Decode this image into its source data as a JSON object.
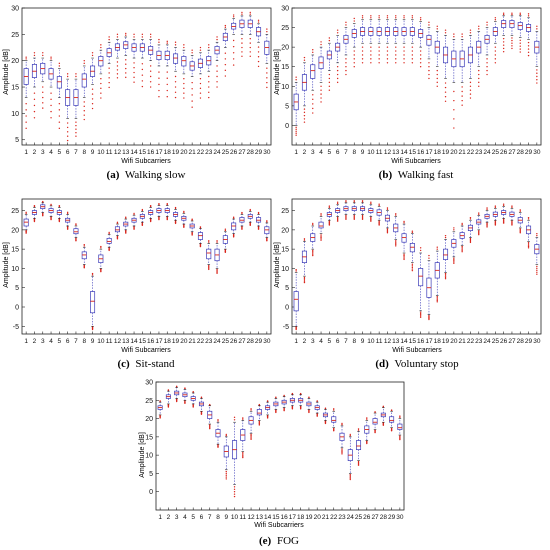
{
  "chart_data": [
    {
      "type": "box",
      "caption_letter": "(a)",
      "caption_text": "Walking slow",
      "xlabel": "Wifi Subcarriers",
      "ylabel": "Amplitude [dB]",
      "ylim": [
        4,
        30
      ],
      "yticks": [
        5,
        10,
        15,
        20,
        25,
        30
      ],
      "categories": [
        "1",
        "2",
        "3",
        "4",
        "5",
        "6",
        "7",
        "8",
        "9",
        "10",
        "11",
        "12",
        "13",
        "14",
        "15",
        "16",
        "17",
        "18",
        "19",
        "20",
        "21",
        "22",
        "23",
        "24",
        "25",
        "26",
        "27",
        "28",
        "29",
        "30"
      ],
      "medians": [
        17,
        18,
        18.5,
        17.5,
        16,
        13,
        13,
        16.5,
        18,
        20,
        21.5,
        22.5,
        23,
        22.5,
        22.5,
        22,
        21,
        21,
        20.5,
        20,
        19,
        19.5,
        20,
        22,
        24.5,
        26.5,
        27,
        27,
        25.5,
        22.5
      ],
      "q1": [
        15.5,
        16.8,
        17.5,
        16.5,
        14.8,
        11.5,
        11.5,
        15,
        17,
        19,
        20.8,
        22,
        22.3,
        21.8,
        21.8,
        21.2,
        20.2,
        20.2,
        19.5,
        19,
        18.2,
        18.7,
        19.2,
        21.3,
        23.8,
        26,
        26.3,
        26.3,
        24.7,
        21.2
      ],
      "q3": [
        18.5,
        19.3,
        19.5,
        18.5,
        17,
        14.5,
        14.5,
        17.5,
        19,
        20.8,
        22.3,
        23.2,
        23.6,
        23.2,
        23.2,
        22.7,
        21.8,
        21.8,
        21.3,
        20.8,
        19.8,
        20.3,
        20.8,
        22.7,
        25.2,
        27.1,
        27.7,
        27.7,
        26.3,
        23.7
      ],
      "whisker_low": [
        13,
        15,
        16,
        15,
        13,
        9,
        9,
        13,
        15.5,
        17.5,
        19.5,
        20.5,
        21,
        20.5,
        20.5,
        20,
        19,
        19,
        18,
        17.5,
        17,
        17.5,
        18,
        20,
        22.5,
        25,
        25,
        25,
        23.5,
        19.5
      ],
      "whisker_high": [
        20,
        20.5,
        20.5,
        20,
        18.5,
        16.5,
        16.5,
        19,
        20.5,
        22,
        23.5,
        24,
        24.5,
        24,
        24,
        24,
        23,
        23,
        22.5,
        22,
        21,
        21.5,
        22,
        23.5,
        26,
        28,
        28.5,
        28.5,
        27,
        25
      ],
      "outliers_low": [
        6,
        8,
        10,
        8,
        6,
        4,
        5,
        8,
        10,
        12,
        14,
        16,
        16,
        15,
        14,
        14,
        12,
        12,
        12,
        12,
        10,
        12,
        12,
        14,
        16,
        18,
        20,
        20,
        18,
        14
      ],
      "outliers_high": [
        21,
        22,
        22,
        21,
        20,
        18,
        18,
        20.5,
        22,
        23.5,
        25,
        25.5,
        25.5,
        25.5,
        25.5,
        25.5,
        24.5,
        24,
        24,
        23.5,
        22.5,
        23,
        23.5,
        25,
        27,
        29,
        29.5,
        29.5,
        28,
        26.5
      ]
    },
    {
      "type": "box",
      "caption_letter": "(b)",
      "caption_text": "Walking fast",
      "xlabel": "Wifi Subcarriers",
      "ylabel": "Amplitude [dB]",
      "ylim": [
        -5,
        30
      ],
      "yticks": [
        0,
        5,
        10,
        15,
        20,
        25,
        30
      ],
      "categories": [
        "1",
        "2",
        "3",
        "4",
        "5",
        "6",
        "7",
        "8",
        "9",
        "10",
        "11",
        "12",
        "13",
        "14",
        "15",
        "16",
        "17",
        "18",
        "19",
        "20",
        "21",
        "22",
        "23",
        "24",
        "25",
        "26",
        "27",
        "28",
        "29",
        "30"
      ],
      "medians": [
        6,
        11,
        14,
        16,
        18,
        20,
        22,
        23.5,
        24,
        24,
        24,
        24,
        24,
        24,
        24,
        23.5,
        22,
        20,
        18,
        17,
        17,
        18,
        20,
        22,
        24,
        26,
        26,
        25.5,
        25,
        20
      ],
      "q1": [
        4,
        9,
        12,
        14.5,
        17,
        19,
        21,
        22.5,
        23,
        23,
        23,
        23,
        23,
        23,
        23,
        22.5,
        20.5,
        18.5,
        16,
        15,
        15,
        16,
        18.5,
        21,
        23,
        25,
        25,
        24.5,
        24,
        18.5
      ],
      "q3": [
        8,
        13,
        15.5,
        17.5,
        19,
        21,
        23,
        24.5,
        25,
        25,
        25,
        25,
        25,
        25,
        25,
        24.5,
        23,
        21.5,
        20,
        19,
        19,
        20,
        21.5,
        23,
        25,
        26.8,
        26.8,
        26.3,
        25.8,
        21.5
      ],
      "whisker_low": [
        0,
        5,
        9,
        11,
        14,
        16,
        18,
        20,
        21,
        21,
        21,
        21,
        21,
        21,
        21,
        20,
        17,
        15,
        12,
        11,
        11,
        12,
        15,
        18,
        21,
        23,
        23,
        22.5,
        22,
        15
      ],
      "whisker_high": [
        11,
        16,
        18,
        20,
        21,
        23,
        25,
        26,
        27,
        27,
        27,
        27,
        27,
        27,
        27,
        26.5,
        25,
        24,
        23,
        22,
        22,
        23,
        24,
        25,
        26.5,
        28,
        28,
        28,
        27.5,
        24
      ],
      "outliers_low": [
        -3,
        0,
        2,
        5,
        8,
        10,
        12,
        14,
        15,
        15,
        15,
        15,
        15,
        15,
        15,
        14,
        11,
        9,
        5,
        -3,
        4,
        6,
        9,
        12,
        15,
        18,
        19,
        18,
        17,
        10
      ],
      "outliers_high": [
        13,
        18,
        20,
        22,
        23,
        25,
        27,
        28,
        28.5,
        28.5,
        28.5,
        28.5,
        28.5,
        28.5,
        28.5,
        28,
        27,
        26,
        25,
        24,
        24,
        25,
        26,
        27,
        28,
        29,
        29,
        29,
        29,
        26
      ]
    },
    {
      "type": "box",
      "caption_letter": "(c)",
      "caption_text": "Sit-stand",
      "xlabel": "Wifi Subcarriers",
      "ylabel": "Amplitude [dB]",
      "ylim": [
        -7,
        28
      ],
      "yticks": [
        -5,
        0,
        5,
        10,
        15,
        20,
        25
      ],
      "categories": [
        "1",
        "2",
        "3",
        "4",
        "5",
        "6",
        "7",
        "8",
        "9",
        "10",
        "11",
        "12",
        "13",
        "14",
        "15",
        "16",
        "17",
        "18",
        "19",
        "20",
        "21",
        "22",
        "23",
        "24",
        "25",
        "26",
        "27",
        "28",
        "29",
        "30"
      ],
      "medians": [
        22,
        24.5,
        26,
        25,
        24.5,
        22.5,
        19.5,
        13.5,
        1.5,
        12.5,
        17,
        20,
        21.5,
        22.5,
        23.5,
        24.5,
        25,
        25,
        24,
        23,
        21,
        18.5,
        14,
        13.5,
        17.5,
        21,
        22.5,
        23.5,
        22.5,
        20
      ],
      "q1": [
        21,
        24,
        25.5,
        24.5,
        24,
        22,
        19,
        12.5,
        -1.5,
        11.5,
        16.5,
        19.5,
        21,
        22,
        23,
        24,
        24.5,
        24.5,
        23.5,
        22.5,
        20.5,
        17.5,
        12.5,
        12,
        16.5,
        20,
        22,
        23,
        22,
        19
      ],
      "q3": [
        22.8,
        25,
        26.5,
        25.5,
        25,
        23,
        20.3,
        14.3,
        4,
        13.5,
        17.8,
        20.8,
        22,
        23,
        24,
        25,
        25.5,
        25.5,
        24.5,
        23.5,
        21.5,
        19.3,
        15,
        15,
        18.5,
        21.8,
        23.2,
        24,
        23.2,
        20.8
      ],
      "whisker_low": [
        20,
        23,
        24.5,
        23.5,
        23,
        21,
        18,
        11,
        -5,
        10,
        15.5,
        18.5,
        20,
        21,
        22,
        23,
        23.5,
        23.5,
        22.5,
        21.5,
        19.5,
        16.5,
        11,
        10,
        15,
        19,
        21,
        22,
        21,
        18
      ],
      "whisker_high": [
        24,
        25.8,
        27,
        26.2,
        25.8,
        24,
        21,
        15.5,
        8,
        15,
        18.8,
        21.5,
        22.8,
        23.8,
        24.8,
        25.8,
        26.3,
        26.3,
        25.3,
        24.3,
        22.3,
        20.3,
        16.5,
        16.5,
        19.5,
        22.8,
        24,
        24.8,
        24,
        21.8
      ],
      "outliers_low": [
        19,
        22,
        23.5,
        22.5,
        22,
        20,
        17,
        10,
        -6,
        9,
        14.5,
        17.5,
        19,
        20,
        21,
        22,
        22.5,
        22.5,
        21.5,
        20.5,
        18.5,
        15.5,
        9.5,
        8.5,
        14,
        18,
        20,
        21,
        20,
        17
      ],
      "outliers_high": [
        24.8,
        26.5,
        27.5,
        26.8,
        26.5,
        24.8,
        21.8,
        16.5,
        9,
        16,
        19.6,
        22.2,
        23.5,
        24.5,
        25.5,
        26.5,
        27,
        27,
        26,
        25,
        23,
        21,
        17.5,
        17.5,
        20.5,
        23.5,
        24.7,
        25.5,
        24.7,
        22.6
      ]
    },
    {
      "type": "box",
      "caption_letter": "(d)",
      "caption_text": "Voluntary stop",
      "xlabel": "Wifi Subcarriers",
      "ylabel": "Amplitude [dB]",
      "ylim": [
        -7,
        28
      ],
      "yticks": [
        -5,
        0,
        5,
        10,
        15,
        20,
        25
      ],
      "categories": [
        "1",
        "2",
        "3",
        "4",
        "5",
        "6",
        "7",
        "8",
        "9",
        "10",
        "11",
        "12",
        "13",
        "14",
        "15",
        "16",
        "17",
        "18",
        "19",
        "20",
        "21",
        "22",
        "23",
        "24",
        "25",
        "26",
        "27",
        "28",
        "29",
        "30"
      ],
      "medians": [
        2,
        13,
        18,
        21,
        24,
        25,
        25.5,
        25.5,
        25.5,
        25,
        24.5,
        23,
        20.5,
        18,
        15.5,
        8,
        5,
        9.5,
        13.5,
        16.5,
        18.5,
        20.5,
        22,
        23.5,
        24,
        24.5,
        24,
        22.5,
        20,
        15
      ],
      "q1": [
        -1,
        11.5,
        17,
        20.5,
        23.5,
        24.5,
        25,
        25,
        25,
        24.5,
        23.8,
        22.3,
        19.5,
        16.8,
        14.3,
        5.5,
        2.5,
        7.5,
        12.3,
        15.5,
        17.8,
        19.8,
        21.5,
        23,
        23.5,
        24,
        23.5,
        21.8,
        19,
        13.8
      ],
      "q3": [
        4,
        14.5,
        19,
        22,
        24.5,
        25.5,
        26,
        26,
        26,
        25.5,
        25.2,
        23.8,
        21.5,
        19,
        16.5,
        10,
        7.5,
        11.5,
        15,
        17.5,
        19.3,
        21.2,
        22.6,
        24,
        24.6,
        25,
        24.6,
        23.2,
        21,
        16.2
      ],
      "whisker_low": [
        -5,
        8,
        15,
        19,
        22.5,
        23.5,
        24,
        24,
        24,
        23.5,
        22.5,
        20.5,
        17.5,
        14,
        11.5,
        -1,
        -2,
        3,
        9,
        13,
        16,
        18,
        20,
        22,
        22.5,
        23,
        22.5,
        20.5,
        17,
        11
      ],
      "whisker_high": [
        9,
        17,
        21,
        23.5,
        25.5,
        26.5,
        27,
        27,
        27,
        26.5,
        26,
        25,
        23.5,
        21.5,
        19,
        14,
        12,
        14.5,
        17.5,
        19.5,
        21,
        22.5,
        23.7,
        25,
        25.5,
        26,
        25.5,
        24.5,
        22.5,
        18
      ],
      "outliers_low": [
        -6,
        6,
        13,
        17,
        21,
        22,
        22.5,
        22.5,
        22.5,
        22,
        21,
        19,
        15.5,
        12,
        9,
        -3,
        -3.5,
        1,
        7,
        11,
        14,
        16.5,
        18.5,
        20.5,
        21,
        21.5,
        21,
        19,
        15,
        8
      ],
      "outliers_high": [
        10,
        18,
        22,
        24.5,
        26.5,
        27.5,
        27.8,
        27.8,
        27.8,
        27.5,
        27,
        26,
        24.5,
        22.5,
        20,
        16,
        14,
        16,
        19,
        21,
        22,
        23.5,
        24.7,
        26,
        26.5,
        27,
        26.5,
        25.5,
        23.5,
        19.5
      ]
    },
    {
      "type": "box",
      "caption_letter": "(e)",
      "caption_text": "FOG",
      "xlabel": "Wifi Subcarriers",
      "ylabel": "Amplitude [dB]",
      "ylim": [
        -5,
        30
      ],
      "yticks": [
        0,
        5,
        10,
        15,
        20,
        25,
        30
      ],
      "categories": [
        "1",
        "2",
        "3",
        "4",
        "5",
        "6",
        "7",
        "8",
        "9",
        "10",
        "11",
        "12",
        "13",
        "14",
        "15",
        "16",
        "17",
        "18",
        "19",
        "20",
        "21",
        "22",
        "23",
        "24",
        "25",
        "26",
        "27",
        "28",
        "29",
        "30"
      ],
      "medians": [
        23,
        26,
        27,
        26.5,
        25.5,
        24,
        21,
        16,
        11,
        11.5,
        15.5,
        19.5,
        21.5,
        23,
        24,
        24.5,
        25,
        25,
        24,
        23,
        21,
        19.5,
        15,
        10,
        12.5,
        17,
        19,
        21,
        19.5,
        17.5
      ],
      "q1": [
        22.5,
        25.5,
        26.5,
        26,
        25,
        23.5,
        20,
        15,
        9.5,
        9,
        14,
        18.5,
        21,
        22.5,
        23.5,
        24,
        24.5,
        24.5,
        23.5,
        22.5,
        20.5,
        19,
        14,
        8.5,
        11.5,
        16,
        18.5,
        20.5,
        19,
        17
      ],
      "q3": [
        23.5,
        26.5,
        27.5,
        27,
        26,
        24.5,
        22,
        17,
        12.5,
        14,
        17,
        20.5,
        22.5,
        23.5,
        24.5,
        25,
        25.5,
        25.5,
        24.5,
        23.5,
        21.5,
        20.5,
        16,
        11.5,
        14,
        18,
        20,
        21.5,
        20.5,
        18.5
      ],
      "whisker_low": [
        21,
        24,
        25.5,
        25,
        24,
        22,
        18.5,
        13,
        6,
        2,
        11,
        16,
        19.5,
        21,
        22.5,
        23,
        23.5,
        23.5,
        22.5,
        21.5,
        19.5,
        17.5,
        12,
        5,
        8.5,
        14,
        17,
        19,
        17.5,
        15.5
      ],
      "whisker_high": [
        24.5,
        27.5,
        28.5,
        28,
        27,
        25.5,
        23.5,
        19,
        15,
        19,
        19.5,
        22,
        23.5,
        24.5,
        25.5,
        26,
        26.5,
        26.5,
        25.5,
        24.5,
        22.5,
        22,
        18,
        15,
        16.5,
        19.5,
        21.5,
        23,
        22,
        20
      ],
      "outliers_low": [
        20,
        23,
        24.5,
        24,
        23,
        21,
        17,
        12,
        3,
        -2,
        9,
        14,
        18,
        20,
        21.5,
        22,
        22.5,
        22.5,
        21.5,
        20.5,
        18.5,
        16.5,
        10,
        3,
        7,
        13,
        16,
        18,
        16.5,
        14
      ],
      "outliers_high": [
        25,
        28,
        29,
        28.5,
        27.5,
        26,
        24,
        20,
        16,
        21,
        20.5,
        23,
        24,
        25,
        26,
        26.5,
        27,
        27,
        26,
        25,
        23,
        23,
        19,
        16,
        17.5,
        20.5,
        22,
        23.5,
        22.5,
        21
      ]
    }
  ]
}
